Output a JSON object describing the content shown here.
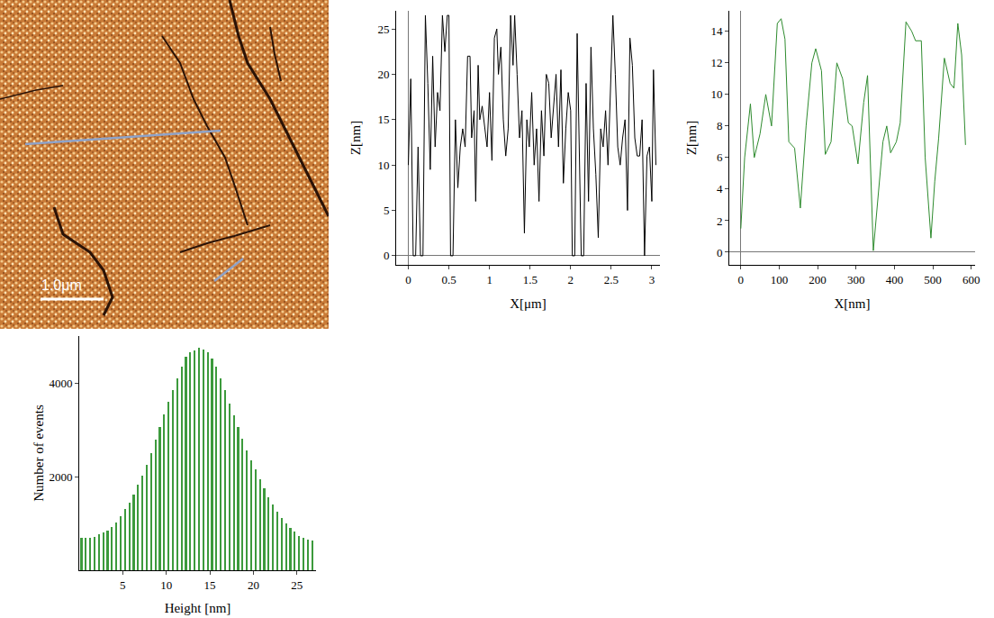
{
  "chart_data": [
    {
      "type": "image",
      "scale_bar_label": "1.0μm",
      "color": "#c97a36"
    },
    {
      "type": "line",
      "x_label": "X[μm]",
      "y_label": "Z[nm]",
      "color": "#000000",
      "grid": false,
      "x": [
        0,
        0.03,
        0.06,
        0.09,
        0.12,
        0.15,
        0.18,
        0.21,
        0.24,
        0.27,
        0.3,
        0.33,
        0.36,
        0.39,
        0.42,
        0.45,
        0.48,
        0.5,
        0.52,
        0.55,
        0.58,
        0.61,
        0.64,
        0.67,
        0.7,
        0.73,
        0.76,
        0.78,
        0.81,
        0.83,
        0.86,
        0.88,
        0.91,
        0.94,
        0.97,
        1.0,
        1.03,
        1.06,
        1.09,
        1.11,
        1.14,
        1.17,
        1.2,
        1.23,
        1.26,
        1.29,
        1.31,
        1.34,
        1.37,
        1.4,
        1.43,
        1.46,
        1.49,
        1.52,
        1.55,
        1.58,
        1.61,
        1.64,
        1.67,
        1.7,
        1.73,
        1.76,
        1.79,
        1.82,
        1.85,
        1.88,
        1.91,
        1.94,
        1.97,
        2.0,
        2.02,
        2.05,
        2.08,
        2.1,
        2.13,
        2.16,
        2.19,
        2.22,
        2.25,
        2.28,
        2.31,
        2.34,
        2.37,
        2.4,
        2.43,
        2.46,
        2.49,
        2.52,
        2.55,
        2.58,
        2.61,
        2.64,
        2.67,
        2.7,
        2.73,
        2.76,
        2.79,
        2.82,
        2.85,
        2.88,
        2.91,
        2.94,
        2.97,
        3.0,
        3.02,
        3.05
      ],
      "values": [
        10,
        19.5,
        0,
        0,
        12,
        0,
        0,
        26.5,
        19,
        9.5,
        22,
        12,
        18,
        16,
        26.5,
        22.5,
        26.5,
        26.5,
        0,
        0,
        15,
        7.5,
        12,
        14,
        12,
        22,
        22,
        13,
        16,
        6,
        21,
        15,
        16.5,
        14,
        12,
        18,
        10.5,
        24,
        25,
        20,
        23,
        15,
        11,
        14,
        26.5,
        21,
        26.5,
        20,
        13,
        16,
        2.5,
        15,
        12,
        18,
        10,
        14,
        6,
        16,
        11,
        20,
        19,
        13,
        17,
        20,
        12,
        20.5,
        8,
        14,
        18,
        16,
        0,
        0,
        24.5,
        14,
        0,
        0,
        19,
        6,
        23,
        14,
        9,
        2,
        14,
        12,
        16,
        10,
        18,
        26.5,
        20,
        12,
        10,
        13,
        15,
        5,
        24,
        21,
        13,
        11,
        11,
        15,
        0,
        11,
        12,
        6,
        20.5,
        10
      ],
      "xlim": [
        -0.15,
        3.1
      ],
      "xticks": [
        0,
        0.5,
        1,
        1.5,
        2,
        2.5,
        3
      ],
      "ylim": [
        -1,
        27
      ],
      "yticks": [
        0,
        5,
        10,
        15,
        20,
        25
      ]
    },
    {
      "type": "line",
      "x_label": "X[nm]",
      "y_label": "Z[nm]",
      "color": "#2e8b2e",
      "grid": false,
      "x": [
        0,
        10,
        25,
        35,
        50,
        65,
        80,
        95,
        105,
        115,
        125,
        140,
        155,
        170,
        185,
        195,
        210,
        220,
        235,
        250,
        265,
        280,
        290,
        305,
        320,
        330,
        345,
        360,
        370,
        380,
        390,
        405,
        415,
        430,
        445,
        455,
        470,
        480,
        495,
        505,
        515,
        530,
        545,
        555,
        565,
        575,
        585
      ],
      "values": [
        1.5,
        6,
        9.4,
        6,
        7.5,
        10,
        8,
        14.5,
        14.8,
        13.5,
        7,
        6.6,
        2.8,
        8,
        12,
        12.9,
        11.5,
        6.2,
        7,
        12,
        11,
        8.2,
        8,
        5.6,
        9.5,
        11.2,
        0.1,
        4,
        7,
        8,
        6.3,
        7,
        8.2,
        14.6,
        14,
        13.4,
        13.4,
        6,
        0.9,
        4.5,
        7.2,
        12.3,
        10.7,
        10.4,
        14.5,
        12.5,
        6.8
      ],
      "xlim": [
        -30,
        610
      ],
      "xticks": [
        0,
        100,
        200,
        300,
        400,
        500,
        600
      ],
      "ylim": [
        -0.8,
        15.3
      ],
      "yticks": [
        0,
        2,
        4,
        6,
        8,
        10,
        12,
        14
      ]
    },
    {
      "type": "histogram",
      "x_label": "Height [nm]",
      "y_label": "Number of events",
      "color": "#3c9a3c",
      "grid": false,
      "bins": [
        0,
        0.5,
        1,
        1.5,
        2,
        2.5,
        3,
        3.5,
        4,
        4.5,
        5,
        5.5,
        6,
        6.5,
        7,
        7.5,
        8,
        8.5,
        9,
        9.5,
        10,
        10.5,
        11,
        11.5,
        12,
        12.5,
        13,
        13.5,
        14,
        14.5,
        15,
        15.5,
        16,
        16.5,
        17,
        17.5,
        18,
        18.5,
        19,
        19.5,
        20,
        20.5,
        21,
        21.5,
        22,
        22.5,
        23,
        23.5,
        24,
        24.5,
        25,
        25.5,
        26,
        26.5,
        27
      ],
      "counts": [
        700,
        690,
        700,
        720,
        760,
        800,
        850,
        930,
        1020,
        1150,
        1300,
        1450,
        1620,
        1820,
        2020,
        2250,
        2500,
        2780,
        3050,
        3320,
        3600,
        3850,
        4100,
        4350,
        4550,
        4650,
        4700,
        4750,
        4720,
        4650,
        4520,
        4350,
        4100,
        3850,
        3550,
        3300,
        3050,
        2800,
        2550,
        2350,
        2150,
        1950,
        1750,
        1550,
        1400,
        1250,
        1120,
        1000,
        900,
        820,
        740,
        700,
        660,
        630
      ],
      "xlim": [
        0,
        27.2
      ],
      "xticks": [
        5,
        10,
        15,
        20,
        25
      ],
      "ylim": [
        0,
        5000
      ],
      "yticks": [
        2000,
        4000
      ]
    }
  ]
}
